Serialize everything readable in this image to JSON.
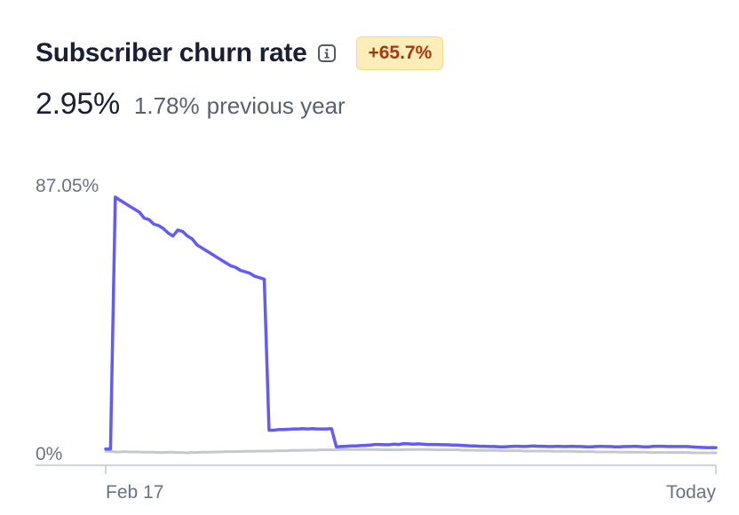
{
  "header": {
    "title": "Subscriber churn rate",
    "info_icon": "info-icon",
    "change_badge": "+65.7%",
    "badge_color": "#fcedb9",
    "badge_text_color": "#a33b10"
  },
  "summary": {
    "current_value": "2.95%",
    "previous_value": "1.78%",
    "previous_label": "previous year"
  },
  "chart_data": {
    "type": "line",
    "title": "",
    "xlabel": "",
    "ylabel": "",
    "ylim": [
      0,
      87.05
    ],
    "y_ticks": [
      "87.05%",
      "0%"
    ],
    "x_ticks": [
      "Feb 17",
      "Today"
    ],
    "grid": false,
    "series": [
      {
        "color": "#625afa",
        "values": [
          2.5,
          2.5,
          87.05,
          86,
          85,
          84,
          83,
          82,
          80,
          79.5,
          78,
          77.5,
          76.5,
          75,
          74,
          76,
          75.5,
          74,
          73,
          71,
          70,
          69,
          68,
          67,
          66,
          65,
          64,
          63.5,
          62.5,
          62,
          61.5,
          60.5,
          60,
          59.5,
          8.8,
          8.8,
          9,
          9,
          9.1,
          9.2,
          9.2,
          9.3,
          9.2,
          9.3,
          9.2,
          9.2,
          9.2,
          9.3,
          3.2,
          3.3,
          3.4,
          3.5,
          3.5,
          3.6,
          3.7,
          3.8,
          4,
          4,
          3.9,
          3.9,
          4.1,
          4,
          4.3,
          4.2,
          4.1,
          4.2,
          4.1,
          4,
          4,
          4,
          3.9,
          3.9,
          3.8,
          3.8,
          3.7,
          3.6,
          3.5,
          3.5,
          3.4,
          3.4,
          3.3,
          3.3,
          3.2,
          3.2,
          3.3,
          3.4,
          3.4,
          3.3,
          3.4,
          3.5,
          3.4,
          3.4,
          3.3,
          3.3,
          3.4,
          3.3,
          3.3,
          3.4,
          3.3,
          3.3,
          3.2,
          3.2,
          3.3,
          3.4,
          3.3,
          3.3,
          3.2,
          3.2,
          3.3,
          3.3,
          3.4,
          3.3,
          3.2,
          3.2,
          3.4,
          3.4,
          3.4,
          3.3,
          3.3,
          3.3,
          3.3,
          3.3,
          3.2,
          3.1,
          3,
          2.95,
          2.95,
          2.95
        ]
      },
      {
        "color": "#c4c8cf",
        "values": [
          1.7,
          1.7,
          1.5,
          1.5,
          1.6,
          1.5,
          1.5,
          1.5,
          1.4,
          1.4,
          1.4,
          1.3,
          1.3,
          1.4,
          1.4,
          1.3,
          1.3,
          1.2,
          1.3,
          1.3,
          1.4,
          1.4,
          1.4,
          1.5,
          1.5,
          1.6,
          1.6,
          1.6,
          1.6,
          1.7,
          1.7,
          1.7,
          1.8,
          1.8,
          1.8,
          1.8,
          1.9,
          1.9,
          1.9,
          2,
          2,
          2,
          2.1,
          2.1,
          2.1,
          2.2,
          2.2,
          2.2,
          2.2,
          2.3,
          2.3,
          2.3,
          2.3,
          2.3,
          2.3,
          2.3,
          2.3,
          2.3,
          2.2,
          2.2,
          2.2,
          2.2,
          2.2,
          2.3,
          2.3,
          2.3,
          2.3,
          2.3,
          2.3,
          2.2,
          2.2,
          2.2,
          2.2,
          2.2,
          2.2,
          2.1,
          2.1,
          2.1,
          2,
          2,
          2,
          2,
          2,
          1.9,
          1.9,
          1.9,
          1.9,
          1.9,
          1.8,
          1.8,
          1.8,
          1.8,
          1.8,
          1.8,
          1.7,
          1.7,
          1.7,
          1.7,
          1.7,
          1.6,
          1.6,
          1.6,
          1.6,
          1.5,
          1.5,
          1.5,
          1.5,
          1.5,
          1.4,
          1.4,
          1.4,
          1.4,
          1.4,
          1.4,
          1.3,
          1.3,
          1.3,
          1.3,
          1.3,
          1.3,
          1.3,
          1.3,
          1.3,
          1.2,
          1.2,
          1.2,
          1.2,
          1.2,
          1.2
        ]
      }
    ]
  }
}
